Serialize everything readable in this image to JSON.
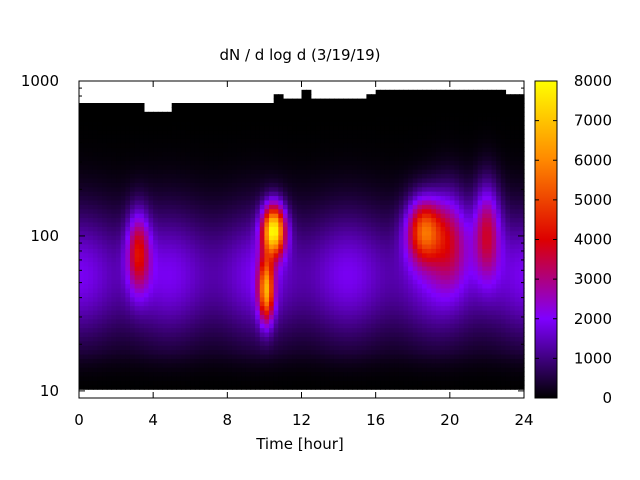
{
  "chart_data": {
    "type": "heatmap",
    "title": "dN / d log d (3/19/19)",
    "xlabel": "Time [hour]",
    "ylabel": "",
    "xlim": [
      0,
      24
    ],
    "ylim": [
      9,
      1000
    ],
    "y_scale": "log",
    "x_ticks": [
      0,
      4,
      8,
      12,
      16,
      20,
      24
    ],
    "x_tick_labels": [
      "0",
      "4",
      "8",
      "12",
      "16",
      "20",
      "24"
    ],
    "y_ticks": [
      10,
      100,
      1000
    ],
    "y_tick_labels": [
      "10",
      "100",
      "1000"
    ],
    "colorbar": {
      "range": [
        0,
        8000
      ],
      "ticks": [
        0,
        1000,
        2000,
        3000,
        4000,
        5000,
        6000,
        7000,
        8000
      ],
      "tick_labels": [
        "0",
        "1000",
        "2000",
        "3000",
        "4000",
        "5000",
        "6000",
        "7000",
        "8000"
      ],
      "colormap": [
        "#000000",
        "#7f00ff",
        "#dd0000",
        "#ff8800",
        "#ffff00"
      ]
    },
    "grid": false,
    "legend": "none",
    "data_extent": {
      "hour": [
        0,
        24
      ],
      "diameter_min": 10,
      "diameter_top_by_hour": [
        [
          0,
          700
        ],
        [
          1,
          700
        ],
        [
          2,
          700
        ],
        [
          3,
          700
        ],
        [
          3.5,
          640
        ],
        [
          4.5,
          640
        ],
        [
          5,
          700
        ],
        [
          6,
          700
        ],
        [
          8,
          700
        ],
        [
          10,
          740
        ],
        [
          10.5,
          800
        ],
        [
          11,
          780
        ],
        [
          12,
          900
        ],
        [
          12.5,
          780
        ],
        [
          14,
          760
        ],
        [
          15.5,
          800
        ],
        [
          16,
          900
        ],
        [
          17,
          900
        ],
        [
          18,
          860
        ],
        [
          20,
          900
        ],
        [
          21,
          850
        ],
        [
          22,
          880
        ],
        [
          23,
          800
        ],
        [
          24,
          700
        ]
      ]
    },
    "features": [
      {
        "hour": 10.5,
        "diameter": 110,
        "peak": 7000,
        "width_hour": 0.6,
        "width_log10": 0.16
      },
      {
        "hour": 10.1,
        "diameter": 45,
        "peak": 5000,
        "width_hour": 0.4,
        "width_log10": 0.2
      },
      {
        "hour": 18.6,
        "diameter": 110,
        "peak": 4300,
        "width_hour": 0.9,
        "width_log10": 0.2
      },
      {
        "hour": 3.2,
        "diameter": 80,
        "peak": 3000,
        "width_hour": 0.6,
        "width_log10": 0.25
      },
      {
        "hour": 22.0,
        "diameter": 110,
        "peak": 2800,
        "width_hour": 0.7,
        "width_log10": 0.3
      },
      {
        "hour": 20.0,
        "diameter": 100,
        "peak": 2200,
        "width_hour": 1.0,
        "width_log10": 0.3
      }
    ],
    "background_level": 1900
  }
}
